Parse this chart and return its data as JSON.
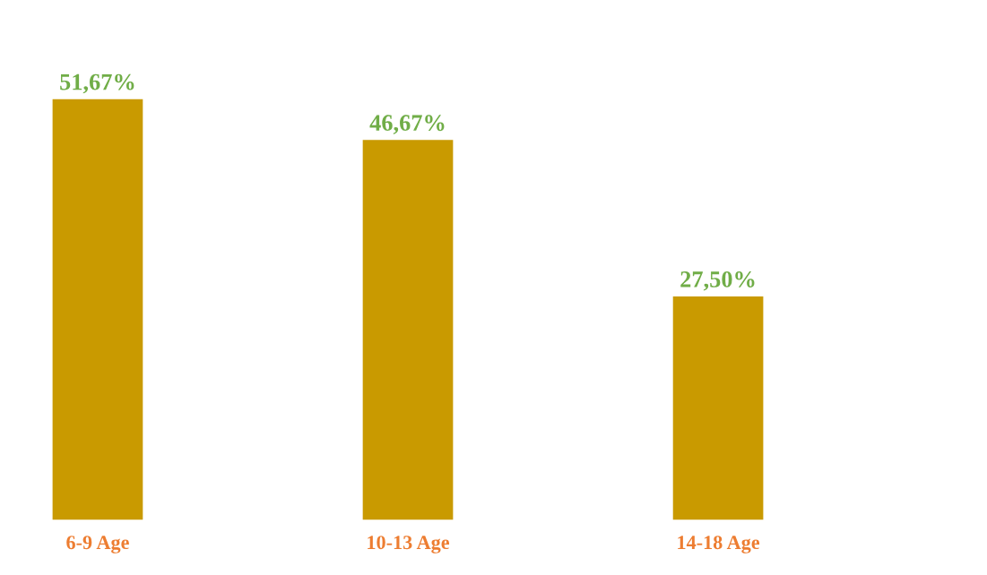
{
  "chart_data": {
    "type": "bar",
    "categories": [
      "6-9 Age",
      "10-13 Age",
      "14-18 Age"
    ],
    "values": [
      51.67,
      46.67,
      27.5
    ],
    "value_labels": [
      "51,67%",
      "46,67%",
      "27,50%"
    ],
    "color": "#c99a00",
    "grid": false,
    "legend": false
  }
}
